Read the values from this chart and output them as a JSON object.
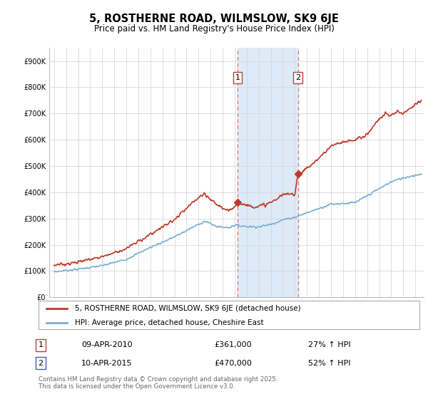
{
  "title": "5, ROSTHERNE ROAD, WILMSLOW, SK9 6JE",
  "subtitle": "Price paid vs. HM Land Registry's House Price Index (HPI)",
  "yticks": [
    0,
    100000,
    200000,
    300000,
    400000,
    500000,
    600000,
    700000,
    800000,
    900000
  ],
  "hpi_color": "#7bafd4",
  "property_color": "#c0392b",
  "sale1_date": "09-APR-2010",
  "sale1_price": 361000,
  "sale1_pct": "27%",
  "sale2_date": "10-APR-2015",
  "sale2_price": 470000,
  "sale2_pct": "52%",
  "legend_property": "5, ROSTHERNE ROAD, WILMSLOW, SK9 6JE (detached house)",
  "legend_hpi": "HPI: Average price, detached house, Cheshire East",
  "footnote": "Contains HM Land Registry data © Crown copyright and database right 2025.\nThis data is licensed under the Open Government Licence v3.0.",
  "background_color": "#ffffff",
  "grid_color": "#d8d8d8",
  "shade_color": "#ddeaf7",
  "vline_color": "#e87070",
  "sale1_x": 2010.25,
  "sale2_x": 2015.25,
  "xmin": 1994.6,
  "xmax": 2025.7,
  "ymin": 0,
  "ymax": 950000
}
